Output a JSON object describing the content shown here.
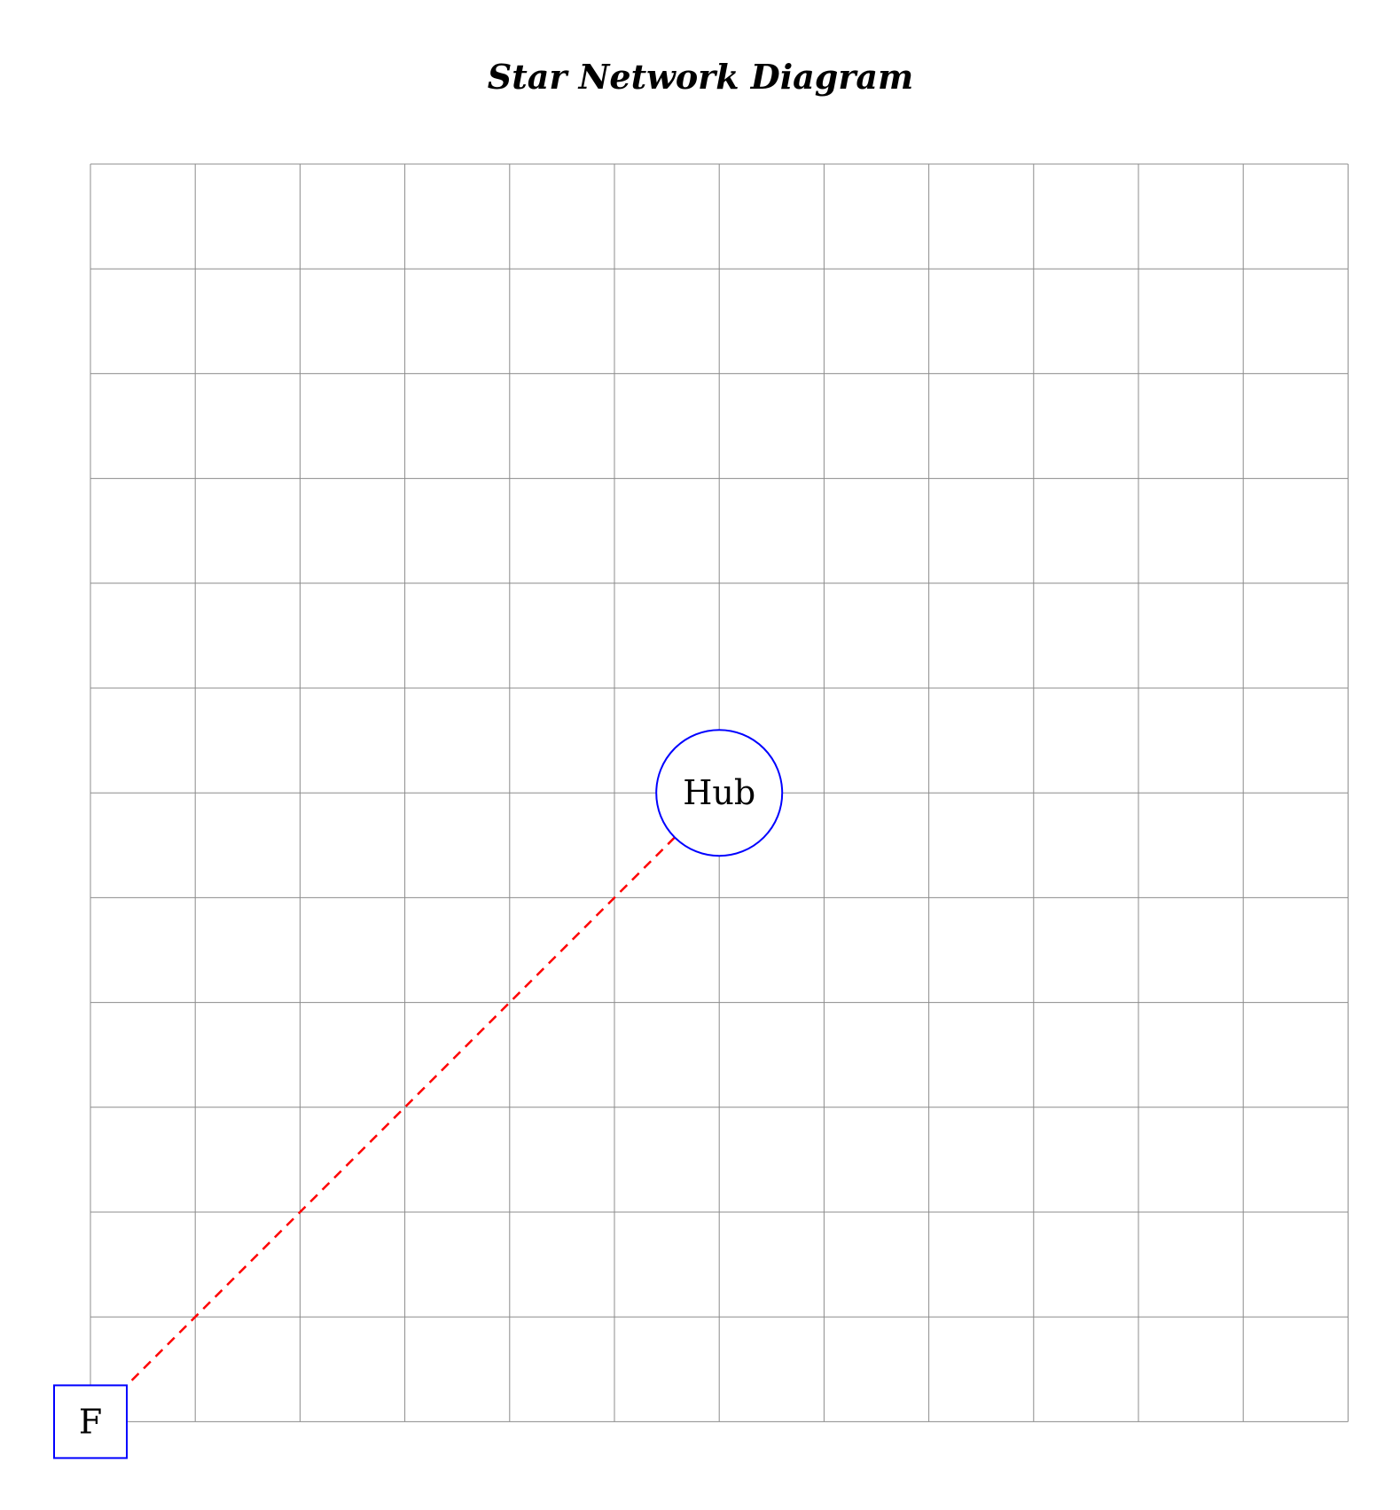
{
  "title": "Star Network Diagram",
  "grid": {
    "columns": 12,
    "rows": 12,
    "color": "#8c8c8c"
  },
  "colors": {
    "node_stroke": "#0000ff",
    "edge": "#ff0000",
    "text": "#000000"
  },
  "nodes": [
    {
      "id": "hub",
      "label": "Hub",
      "shape": "circle",
      "col": 6,
      "row": 6
    },
    {
      "id": "f",
      "label": "F",
      "shape": "square",
      "col": 0,
      "row": 12
    }
  ],
  "edges": [
    {
      "from": "hub",
      "to": "f",
      "style": "dashed"
    }
  ]
}
